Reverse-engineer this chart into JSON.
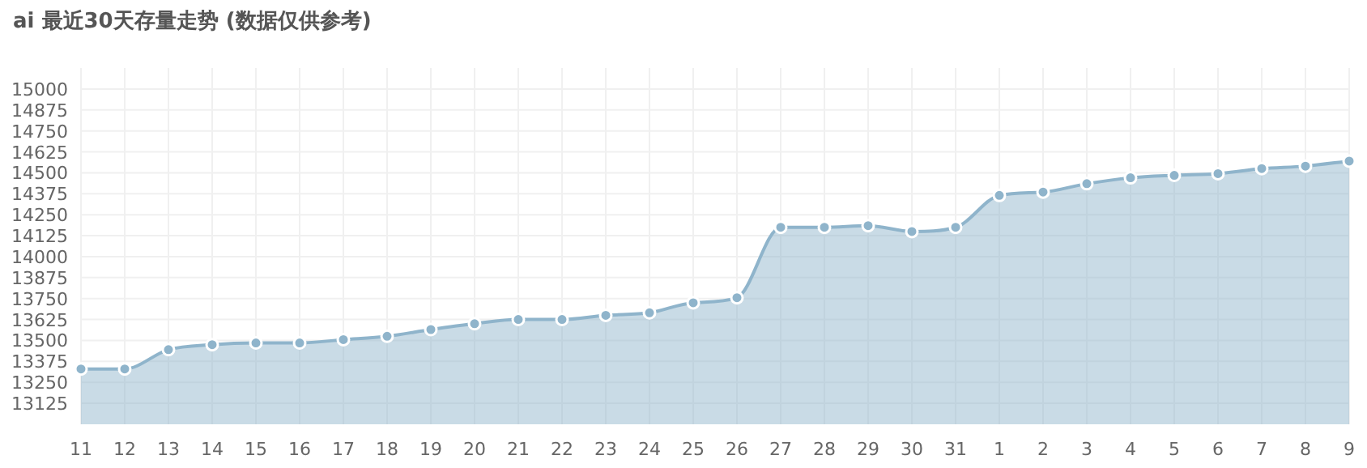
{
  "chart_data": {
    "type": "area",
    "title": "ai 最近30天存量走势 (数据仅供参考)",
    "categories": [
      "11",
      "12",
      "13",
      "14",
      "15",
      "16",
      "17",
      "18",
      "19",
      "20",
      "21",
      "22",
      "23",
      "24",
      "25",
      "26",
      "27",
      "28",
      "29",
      "30",
      "31",
      "1",
      "2",
      "3",
      "4",
      "5",
      "6",
      "7",
      "8",
      "9"
    ],
    "values": [
      13330,
      13330,
      13445,
      13475,
      13485,
      13485,
      13505,
      13525,
      13565,
      13600,
      13625,
      13625,
      13650,
      13665,
      13725,
      13755,
      14175,
      14175,
      14185,
      14150,
      14175,
      14365,
      14385,
      14435,
      14470,
      14485,
      14495,
      14525,
      14540,
      14570
    ],
    "color": "#8fb4cb",
    "ylim": [
      13000,
      15125
    ],
    "yticks": [
      13125,
      13250,
      13375,
      13500,
      13625,
      13750,
      13875,
      14000,
      14125,
      14250,
      14375,
      14500,
      14625,
      14750,
      14875,
      15000
    ],
    "grid": true,
    "marker": "circle"
  }
}
